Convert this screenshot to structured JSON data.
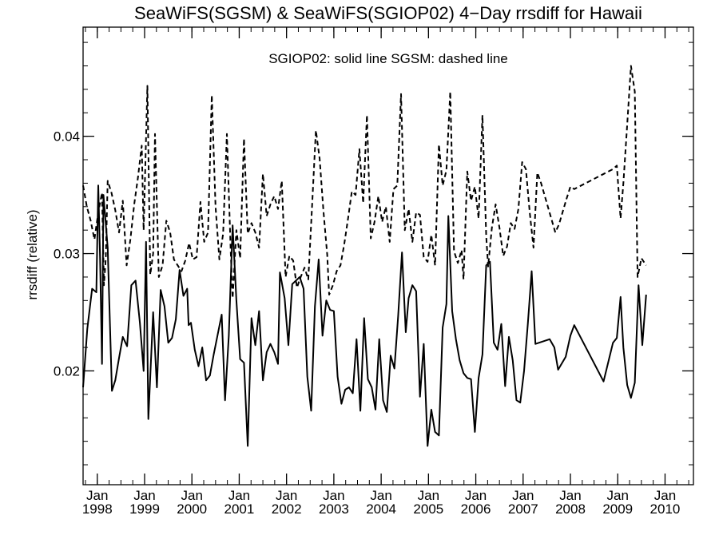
{
  "chart_data": {
    "type": "line",
    "title": "SeaWiFS(SGSM) & SeaWiFS(SGIOP02) 4−Day rrsdiff for Hawaii",
    "annotation": "SGIOP02: solid line   SGSM: dashed line",
    "ylabel": "rrsdiff (relative)",
    "xlabel": "",
    "xlim": [
      1997.7,
      2010.6
    ],
    "ylim": [
      0.0103,
      0.0493
    ],
    "y_ticks": [
      0.02,
      0.03,
      0.04
    ],
    "y_tick_labels": [
      "0.02",
      "0.03",
      "0.04"
    ],
    "x_ticks": [
      1998,
      1999,
      2000,
      2001,
      2002,
      2003,
      2004,
      2005,
      2006,
      2007,
      2008,
      2009,
      2010
    ],
    "x_tick_month": "Jan",
    "x_tick_years": [
      "1998",
      "1999",
      "2000",
      "2001",
      "2002",
      "2003",
      "2004",
      "2005",
      "2006",
      "2007",
      "2008",
      "2009",
      "2010"
    ],
    "grid": false,
    "colors": {
      "axis": "#000000",
      "line": "#000000",
      "background": "#ffffff"
    },
    "series": [
      {
        "name": "SGIOP02",
        "style": "solid",
        "points": [
          [
            1997.7,
            0.0186
          ],
          [
            1997.79,
            0.0236
          ],
          [
            1997.89,
            0.027
          ],
          [
            1997.98,
            0.0267
          ],
          [
            1998.02,
            0.0358
          ],
          [
            1998.06,
            0.0295
          ],
          [
            1998.1,
            0.0206
          ],
          [
            1998.13,
            0.035
          ],
          [
            1998.22,
            0.0305
          ],
          [
            1998.31,
            0.0183
          ],
          [
            1998.38,
            0.0192
          ],
          [
            1998.46,
            0.0211
          ],
          [
            1998.54,
            0.0229
          ],
          [
            1998.63,
            0.0221
          ],
          [
            1998.72,
            0.0273
          ],
          [
            1998.81,
            0.0277
          ],
          [
            1998.9,
            0.0241
          ],
          [
            1998.98,
            0.02
          ],
          [
            1999.03,
            0.031
          ],
          [
            1999.08,
            0.0159
          ],
          [
            1999.18,
            0.025
          ],
          [
            1999.26,
            0.0186
          ],
          [
            1999.34,
            0.0269
          ],
          [
            1999.42,
            0.0255
          ],
          [
            1999.5,
            0.0224
          ],
          [
            1999.58,
            0.0228
          ],
          [
            1999.66,
            0.0244
          ],
          [
            1999.74,
            0.0286
          ],
          [
            1999.82,
            0.0264
          ],
          [
            1999.9,
            0.027
          ],
          [
            1999.93,
            0.0239
          ],
          [
            1999.98,
            0.0241
          ],
          [
            2000.06,
            0.0218
          ],
          [
            2000.14,
            0.0204
          ],
          [
            2000.22,
            0.022
          ],
          [
            2000.3,
            0.0192
          ],
          [
            2000.38,
            0.0196
          ],
          [
            2000.46,
            0.0214
          ],
          [
            2000.54,
            0.023
          ],
          [
            2000.63,
            0.0248
          ],
          [
            2000.7,
            0.0175
          ],
          [
            2000.78,
            0.023
          ],
          [
            2000.86,
            0.0324
          ],
          [
            2000.94,
            0.026
          ],
          [
            2001.02,
            0.021
          ],
          [
            2001.1,
            0.0207
          ],
          [
            2001.18,
            0.0136
          ],
          [
            2001.26,
            0.0245
          ],
          [
            2001.34,
            0.0222
          ],
          [
            2001.42,
            0.0251
          ],
          [
            2001.5,
            0.0192
          ],
          [
            2001.58,
            0.0216
          ],
          [
            2001.66,
            0.0223
          ],
          [
            2001.74,
            0.0216
          ],
          [
            2001.82,
            0.0206
          ],
          [
            2001.86,
            0.0284
          ],
          [
            2001.96,
            0.0262
          ],
          [
            2002.04,
            0.0222
          ],
          [
            2002.12,
            0.0274
          ],
          [
            2002.2,
            0.0277
          ],
          [
            2002.28,
            0.028
          ],
          [
            2002.36,
            0.027
          ],
          [
            2002.44,
            0.0195
          ],
          [
            2002.52,
            0.0166
          ],
          [
            2002.6,
            0.0255
          ],
          [
            2002.68,
            0.0295
          ],
          [
            2002.76,
            0.023
          ],
          [
            2002.84,
            0.026
          ],
          [
            2002.92,
            0.0252
          ],
          [
            2003.0,
            0.0251
          ],
          [
            2003.08,
            0.0195
          ],
          [
            2003.16,
            0.0172
          ],
          [
            2003.24,
            0.0184
          ],
          [
            2003.32,
            0.0186
          ],
          [
            2003.4,
            0.0181
          ],
          [
            2003.48,
            0.0227
          ],
          [
            2003.56,
            0.0166
          ],
          [
            2003.64,
            0.0245
          ],
          [
            2003.72,
            0.0193
          ],
          [
            2003.8,
            0.0186
          ],
          [
            2003.88,
            0.0167
          ],
          [
            2003.96,
            0.0227
          ],
          [
            2004.04,
            0.0175
          ],
          [
            2004.12,
            0.0165
          ],
          [
            2004.2,
            0.0213
          ],
          [
            2004.28,
            0.0202
          ],
          [
            2004.36,
            0.0247
          ],
          [
            2004.44,
            0.0301
          ],
          [
            2004.52,
            0.0233
          ],
          [
            2004.58,
            0.0262
          ],
          [
            2004.66,
            0.0273
          ],
          [
            2004.74,
            0.0268
          ],
          [
            2004.82,
            0.0178
          ],
          [
            2004.9,
            0.0223
          ],
          [
            2004.98,
            0.0136
          ],
          [
            2005.06,
            0.0167
          ],
          [
            2005.14,
            0.0148
          ],
          [
            2005.22,
            0.0145
          ],
          [
            2005.3,
            0.0237
          ],
          [
            2005.38,
            0.0257
          ],
          [
            2005.42,
            0.0332
          ],
          [
            2005.5,
            0.0251
          ],
          [
            2005.58,
            0.0227
          ],
          [
            2005.66,
            0.0209
          ],
          [
            2005.74,
            0.0198
          ],
          [
            2005.82,
            0.0194
          ],
          [
            2005.9,
            0.0193
          ],
          [
            2005.98,
            0.0148
          ],
          [
            2006.06,
            0.0194
          ],
          [
            2006.14,
            0.0214
          ],
          [
            2006.22,
            0.029
          ],
          [
            2006.3,
            0.0293
          ],
          [
            2006.38,
            0.0224
          ],
          [
            2006.46,
            0.0218
          ],
          [
            2006.54,
            0.024
          ],
          [
            2006.62,
            0.0187
          ],
          [
            2006.7,
            0.0229
          ],
          [
            2006.78,
            0.0209
          ],
          [
            2006.86,
            0.0175
          ],
          [
            2006.94,
            0.0173
          ],
          [
            2007.02,
            0.02
          ],
          [
            2007.1,
            0.024
          ],
          [
            2007.18,
            0.0285
          ],
          [
            2007.26,
            0.0223
          ],
          [
            2007.56,
            0.0227
          ],
          [
            2007.66,
            0.022
          ],
          [
            2007.74,
            0.0201
          ],
          [
            2007.9,
            0.0212
          ],
          [
            2008.0,
            0.023
          ],
          [
            2008.08,
            0.0239
          ],
          [
            2008.7,
            0.0191
          ],
          [
            2008.9,
            0.0224
          ],
          [
            2008.98,
            0.0228
          ],
          [
            2009.06,
            0.0263
          ],
          [
            2009.12,
            0.022
          ],
          [
            2009.2,
            0.0188
          ],
          [
            2009.28,
            0.0177
          ],
          [
            2009.36,
            0.019
          ],
          [
            2009.44,
            0.0273
          ],
          [
            2009.52,
            0.0222
          ],
          [
            2009.6,
            0.0265
          ]
        ]
      },
      {
        "name": "SGSM",
        "style": "dashed",
        "points": [
          [
            1997.7,
            0.0358
          ],
          [
            1997.78,
            0.034
          ],
          [
            1997.86,
            0.0328
          ],
          [
            1997.94,
            0.0312
          ],
          [
            1998.02,
            0.0335
          ],
          [
            1998.1,
            0.0352
          ],
          [
            1998.14,
            0.0273
          ],
          [
            1998.18,
            0.0296
          ],
          [
            1998.22,
            0.0362
          ],
          [
            1998.3,
            0.0352
          ],
          [
            1998.38,
            0.0337
          ],
          [
            1998.46,
            0.0318
          ],
          [
            1998.54,
            0.0345
          ],
          [
            1998.62,
            0.029
          ],
          [
            1998.7,
            0.0312
          ],
          [
            1998.78,
            0.0342
          ],
          [
            1998.86,
            0.0365
          ],
          [
            1998.94,
            0.0392
          ],
          [
            1998.98,
            0.032
          ],
          [
            1999.06,
            0.0443
          ],
          [
            1999.12,
            0.0282
          ],
          [
            1999.18,
            0.03
          ],
          [
            1999.22,
            0.0402
          ],
          [
            1999.3,
            0.028
          ],
          [
            1999.38,
            0.029
          ],
          [
            1999.46,
            0.0328
          ],
          [
            1999.54,
            0.0318
          ],
          [
            1999.62,
            0.0295
          ],
          [
            1999.7,
            0.029
          ],
          [
            1999.78,
            0.0285
          ],
          [
            1999.86,
            0.0294
          ],
          [
            1999.94,
            0.0309
          ],
          [
            2000.02,
            0.0295
          ],
          [
            2000.1,
            0.0297
          ],
          [
            2000.18,
            0.0344
          ],
          [
            2000.26,
            0.031
          ],
          [
            2000.34,
            0.0318
          ],
          [
            2000.42,
            0.0435
          ],
          [
            2000.5,
            0.034
          ],
          [
            2000.58,
            0.0295
          ],
          [
            2000.66,
            0.0317
          ],
          [
            2000.74,
            0.0402
          ],
          [
            2000.82,
            0.0302
          ],
          [
            2000.86,
            0.0262
          ],
          [
            2000.94,
            0.032
          ],
          [
            2001.02,
            0.0296
          ],
          [
            2001.1,
            0.0398
          ],
          [
            2001.18,
            0.0317
          ],
          [
            2001.26,
            0.0326
          ],
          [
            2001.34,
            0.0318
          ],
          [
            2001.42,
            0.0305
          ],
          [
            2001.5,
            0.0368
          ],
          [
            2001.58,
            0.0332
          ],
          [
            2001.66,
            0.0342
          ],
          [
            2001.74,
            0.0349
          ],
          [
            2001.82,
            0.0338
          ],
          [
            2001.9,
            0.0362
          ],
          [
            2001.98,
            0.028
          ],
          [
            2002.06,
            0.0298
          ],
          [
            2002.14,
            0.0294
          ],
          [
            2002.22,
            0.0271
          ],
          [
            2002.3,
            0.028
          ],
          [
            2002.38,
            0.0288
          ],
          [
            2002.46,
            0.0278
          ],
          [
            2002.54,
            0.034
          ],
          [
            2002.62,
            0.0405
          ],
          [
            2002.7,
            0.0381
          ],
          [
            2002.78,
            0.0336
          ],
          [
            2002.86,
            0.0299
          ],
          [
            2002.9,
            0.0265
          ],
          [
            2002.98,
            0.0273
          ],
          [
            2003.06,
            0.0285
          ],
          [
            2003.14,
            0.029
          ],
          [
            2003.22,
            0.0308
          ],
          [
            2003.3,
            0.033
          ],
          [
            2003.38,
            0.0353
          ],
          [
            2003.46,
            0.035
          ],
          [
            2003.54,
            0.0389
          ],
          [
            2003.62,
            0.0343
          ],
          [
            2003.7,
            0.0418
          ],
          [
            2003.78,
            0.0313
          ],
          [
            2003.86,
            0.0327
          ],
          [
            2003.94,
            0.0349
          ],
          [
            2004.02,
            0.0327
          ],
          [
            2004.1,
            0.034
          ],
          [
            2004.18,
            0.031
          ],
          [
            2004.26,
            0.0355
          ],
          [
            2004.34,
            0.0358
          ],
          [
            2004.42,
            0.0436
          ],
          [
            2004.5,
            0.032
          ],
          [
            2004.58,
            0.0338
          ],
          [
            2004.66,
            0.031
          ],
          [
            2004.74,
            0.0335
          ],
          [
            2004.82,
            0.0333
          ],
          [
            2004.9,
            0.0297
          ],
          [
            2004.98,
            0.0293
          ],
          [
            2005.06,
            0.0316
          ],
          [
            2005.14,
            0.029
          ],
          [
            2005.22,
            0.0393
          ],
          [
            2005.3,
            0.0358
          ],
          [
            2005.38,
            0.0371
          ],
          [
            2005.46,
            0.0438
          ],
          [
            2005.54,
            0.0302
          ],
          [
            2005.62,
            0.0292
          ],
          [
            2005.7,
            0.0303
          ],
          [
            2005.74,
            0.0278
          ],
          [
            2005.82,
            0.037
          ],
          [
            2005.9,
            0.0345
          ],
          [
            2005.98,
            0.0357
          ],
          [
            2006.06,
            0.033
          ],
          [
            2006.14,
            0.0418
          ],
          [
            2006.22,
            0.0315
          ],
          [
            2006.26,
            0.0289
          ],
          [
            2006.34,
            0.0322
          ],
          [
            2006.42,
            0.0342
          ],
          [
            2006.5,
            0.0322
          ],
          [
            2006.58,
            0.0298
          ],
          [
            2006.66,
            0.0306
          ],
          [
            2006.74,
            0.0326
          ],
          [
            2006.82,
            0.0321
          ],
          [
            2006.9,
            0.0338
          ],
          [
            2006.98,
            0.0378
          ],
          [
            2007.06,
            0.0372
          ],
          [
            2007.14,
            0.0335
          ],
          [
            2007.22,
            0.0305
          ],
          [
            2007.3,
            0.0369
          ],
          [
            2007.38,
            0.036
          ],
          [
            2007.68,
            0.0318
          ],
          [
            2007.76,
            0.0325
          ],
          [
            2007.84,
            0.0336
          ],
          [
            2007.92,
            0.0347
          ],
          [
            2008.0,
            0.0357
          ],
          [
            2008.08,
            0.0355
          ],
          [
            2008.9,
            0.0372
          ],
          [
            2008.98,
            0.0375
          ],
          [
            2009.06,
            0.033
          ],
          [
            2009.12,
            0.036
          ],
          [
            2009.2,
            0.041
          ],
          [
            2009.28,
            0.046
          ],
          [
            2009.36,
            0.0438
          ],
          [
            2009.42,
            0.028
          ],
          [
            2009.5,
            0.0296
          ],
          [
            2009.6,
            0.029
          ]
        ]
      }
    ]
  }
}
